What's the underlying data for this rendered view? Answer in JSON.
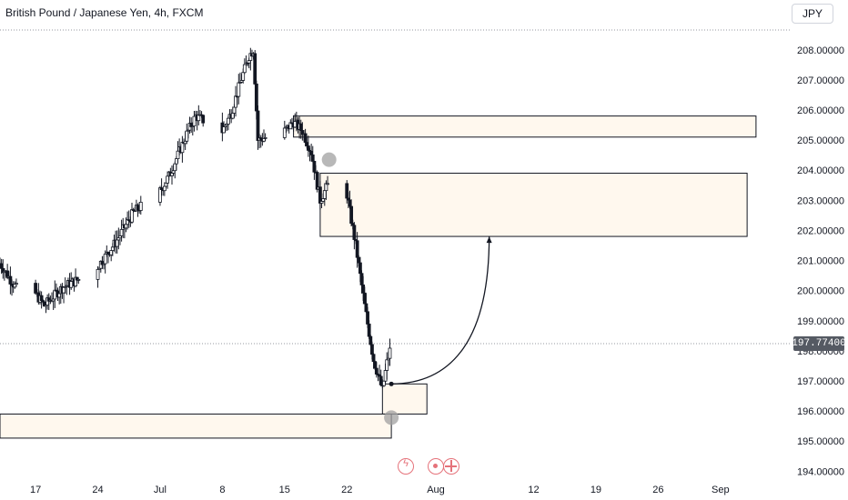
{
  "header": {
    "title": "British Pound / Japanese Yen, 4h, FXCM",
    "currency": "JPY"
  },
  "price_badge": "197.77400",
  "colors": {
    "candle_up": "#ffffff",
    "candle_down": "#131722",
    "candle_border": "#131722",
    "zone_fill": "#fff8ee",
    "zone_border": "#131722",
    "marker": "#a0a0a0",
    "event_icon": "#e5727a"
  },
  "event_icons": [
    "lightning-icon",
    "target-icon",
    "flag-icon"
  ],
  "chart_data": {
    "type": "candlestick",
    "y_ticks": [
      "208.00000",
      "207.00000",
      "206.00000",
      "205.00000",
      "204.00000",
      "203.00000",
      "202.00000",
      "201.00000",
      "200.00000",
      "199.00000",
      "198.00000",
      "197.00000",
      "196.00000",
      "195.00000",
      "194.00000"
    ],
    "y_range": [
      193.95,
      209.05
    ],
    "x_ticks": [
      "17",
      "24",
      "Jul",
      "8",
      "15",
      "22",
      "Aug",
      "12",
      "19",
      "26",
      "Sep"
    ],
    "x_tick_dates": [
      "2024-06-17",
      "2024-06-24",
      "2024-07-01",
      "2024-07-08",
      "2024-07-15",
      "2024-07-22",
      "2024-08-01",
      "2024-08-12",
      "2024-08-19",
      "2024-08-26",
      "2024-09-02"
    ],
    "x_range": [
      "2024-06-13",
      "2024-09-10"
    ],
    "last_price": 197.774,
    "close_path": [
      [
        "2024-06-13",
        200.9
      ],
      [
        "2024-06-15",
        200.0
      ],
      [
        "2024-06-17",
        199.9
      ],
      [
        "2024-06-18",
        199.5
      ],
      [
        "2024-06-20",
        200.1
      ],
      [
        "2024-06-22",
        200.4
      ],
      [
        "2024-06-24",
        200.8
      ],
      [
        "2024-06-26",
        201.6
      ],
      [
        "2024-06-28",
        202.6
      ],
      [
        "2024-07-01",
        203.3
      ],
      [
        "2024-07-02",
        203.8
      ],
      [
        "2024-07-04",
        205.2
      ],
      [
        "2024-07-05",
        205.8
      ],
      [
        "2024-07-08",
        205.3
      ],
      [
        "2024-07-09",
        205.9
      ],
      [
        "2024-07-10",
        206.9
      ],
      [
        "2024-07-11",
        207.8
      ],
      [
        "2024-07-11T12:00",
        208.0
      ],
      [
        "2024-07-12",
        205.0
      ],
      [
        "2024-07-13",
        205.1
      ],
      [
        "2024-07-15",
        205.3
      ],
      [
        "2024-07-16",
        205.6
      ],
      [
        "2024-07-17",
        205.3
      ],
      [
        "2024-07-18",
        204.6
      ],
      [
        "2024-07-19",
        203.0
      ],
      [
        "2024-07-20",
        203.6
      ],
      [
        "2024-07-21",
        203.4
      ],
      [
        "2024-07-22",
        203.2
      ],
      [
        "2024-07-23",
        201.5
      ],
      [
        "2024-07-24",
        199.5
      ],
      [
        "2024-07-25",
        197.7
      ],
      [
        "2024-07-26",
        196.7
      ],
      [
        "2024-07-26T12:00",
        197.6
      ],
      [
        "2024-07-27",
        198.2
      ],
      [
        "2024-07-27T12:00",
        197.8
      ]
    ],
    "zones": [
      {
        "name": "zone-205",
        "x": [
          "2024-07-16",
          "2024-09-06"
        ],
        "y": [
          205.8,
          205.1
        ]
      },
      {
        "name": "zone-202-204",
        "x": [
          "2024-07-19",
          "2024-09-05"
        ],
        "y": [
          203.9,
          201.8
        ]
      },
      {
        "name": "zone-196-197",
        "x": [
          "2024-07-26",
          "2024-07-31"
        ],
        "y": [
          196.9,
          195.9
        ]
      },
      {
        "name": "zone-195-196",
        "x": [
          "2024-06-13",
          "2024-07-27"
        ],
        "y": [
          195.9,
          195.1
        ]
      }
    ],
    "markers": [
      {
        "name": "marker-high",
        "x": "2024-07-20",
        "y": 204.35
      },
      {
        "name": "marker-low",
        "x": "2024-07-27",
        "y": 195.78
      }
    ],
    "projection": {
      "from": [
        "2024-07-27",
        196.9
      ],
      "to": [
        "2024-08-07",
        201.8
      ]
    }
  }
}
